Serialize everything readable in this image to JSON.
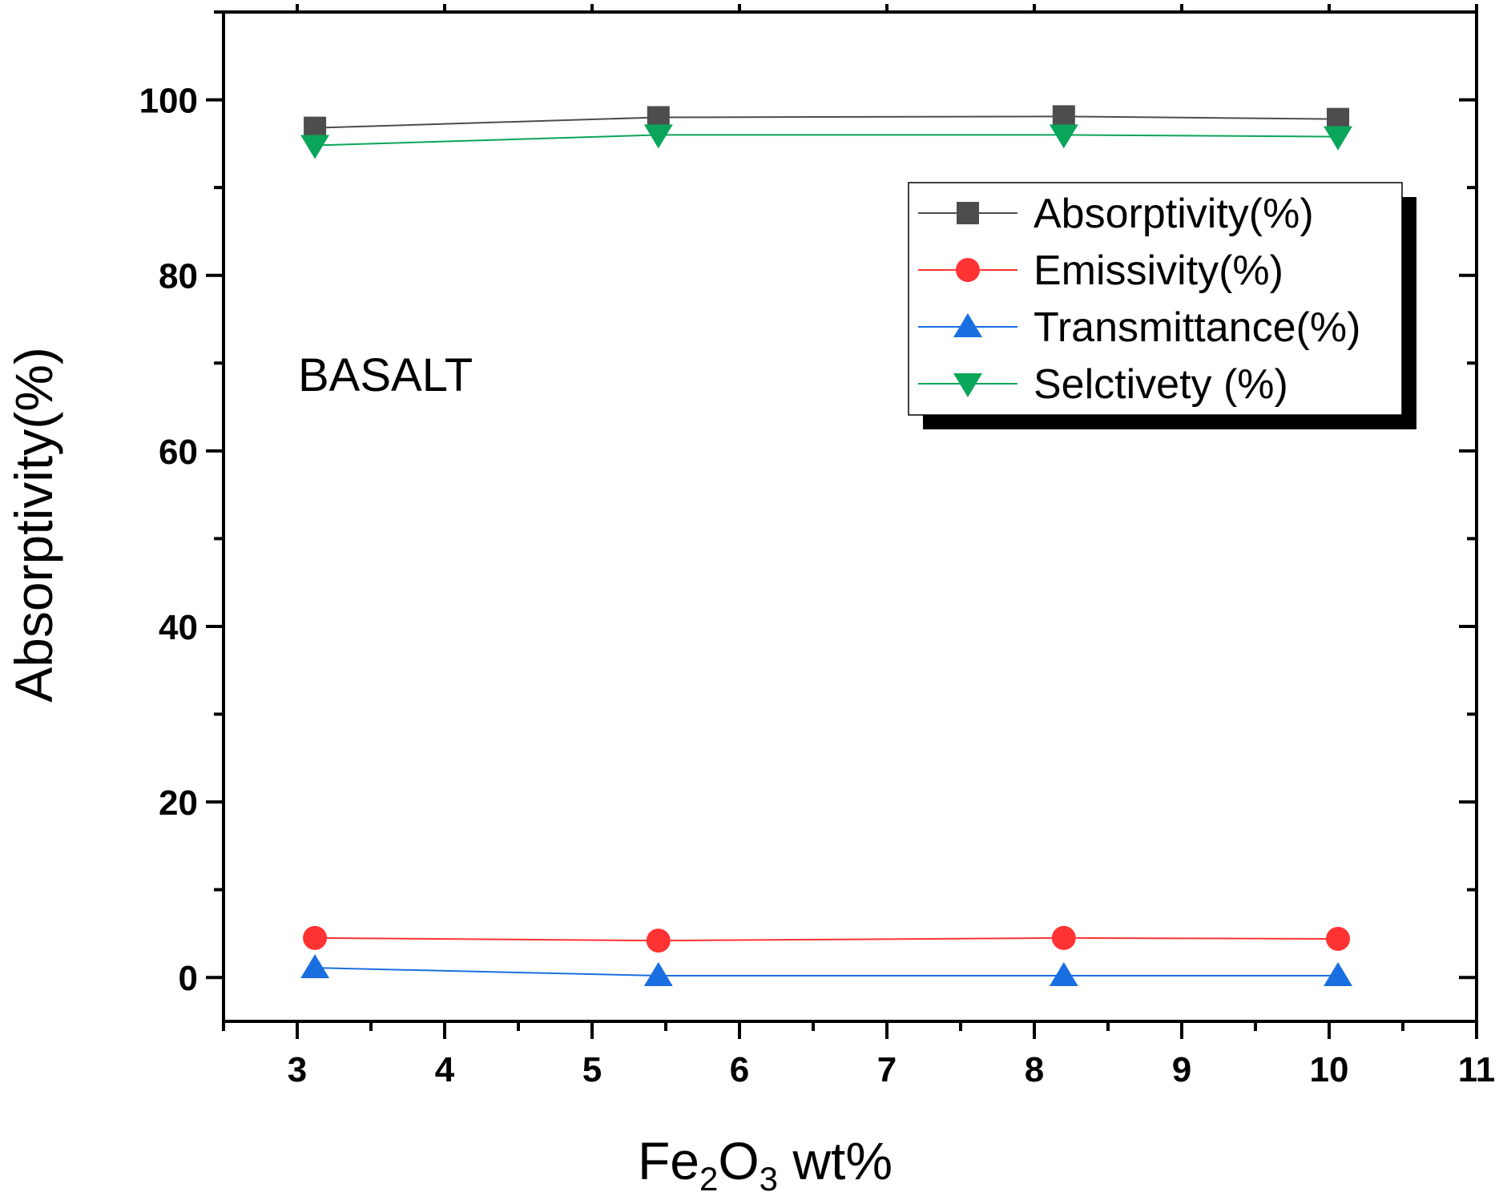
{
  "chart_data": {
    "type": "line",
    "xlabel": {
      "main": "Fe",
      "sub1": "2",
      "mid": "O",
      "sub2": "3",
      "tail": " wt%"
    },
    "ylabel": "Absorptivity(%)",
    "xlim": [
      2.5,
      11
    ],
    "ylim": [
      -5,
      110
    ],
    "xticks": [
      3,
      4,
      5,
      6,
      7,
      8,
      9,
      10,
      11
    ],
    "xtick_labels": [
      "3",
      "4",
      "5",
      "6",
      "7",
      "8",
      "9",
      "10",
      "11"
    ],
    "yticks": [
      0,
      20,
      40,
      60,
      80,
      100
    ],
    "ytick_labels": [
      "0",
      "20",
      "40",
      "60",
      "80",
      "100"
    ],
    "x": [
      3.12,
      5.45,
      8.2,
      10.06
    ],
    "series": [
      {
        "name": "Absorptivity(%)",
        "values": [
          96.8,
          98.0,
          98.1,
          97.8
        ],
        "color": "#4d4d4d",
        "marker": "square"
      },
      {
        "name": "Emissivity(%)",
        "values": [
          4.5,
          4.2,
          4.5,
          4.4
        ],
        "color": "#ff3333",
        "marker": "circle"
      },
      {
        "name": "Transmittance(%)",
        "values": [
          1.1,
          0.2,
          0.2,
          0.2
        ],
        "color": "#1a6fe0",
        "marker": "triangle-up"
      },
      {
        "name": "Selctivety (%)",
        "values": [
          94.8,
          96.0,
          96.0,
          95.8
        ],
        "color": "#0aa55a",
        "marker": "triangle-down"
      }
    ],
    "annotation": "BASALT",
    "legend_position": "top-right",
    "grid": false
  }
}
